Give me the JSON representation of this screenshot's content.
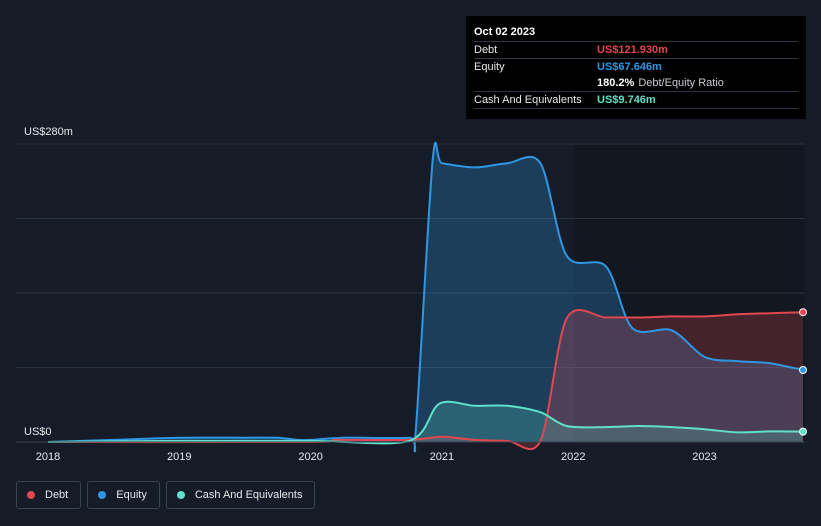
{
  "tooltip": {
    "date": "Oct 02 2023",
    "debt_label": "Debt",
    "debt_value": "US$121.930m",
    "equity_label": "Equity",
    "equity_value": "US$67.646m",
    "ratio_value": "180.2%",
    "ratio_label": "Debt/Equity Ratio",
    "cash_label": "Cash And Equivalents",
    "cash_value": "US$9.746m"
  },
  "legend": [
    {
      "label": "Debt",
      "color": "#e0474e"
    },
    {
      "label": "Equity",
      "color": "#2f96e3"
    },
    {
      "label": "Cash And Equivalents",
      "color": "#5fe0c9"
    }
  ],
  "chart_data": {
    "type": "area",
    "y_top_label": "US$280m",
    "y_bottom_label": "US$0",
    "ylim": [
      0,
      280
    ],
    "xlim": [
      2018.0,
      2023.75
    ],
    "x_tick_labels": [
      "2018",
      "2019",
      "2020",
      "2021",
      "2022",
      "2023"
    ],
    "series": [
      {
        "name": "Debt",
        "color": "#e0474e",
        "points": [
          [
            2018.0,
            0
          ],
          [
            2020.0,
            0
          ],
          [
            2020.2,
            2
          ],
          [
            2020.75,
            2
          ],
          [
            2021.0,
            5
          ],
          [
            2021.25,
            2
          ],
          [
            2021.5,
            1
          ],
          [
            2021.75,
            1
          ],
          [
            2021.95,
            116
          ],
          [
            2022.25,
            117
          ],
          [
            2022.5,
            117
          ],
          [
            2022.75,
            118
          ],
          [
            2023.0,
            118
          ],
          [
            2023.25,
            120
          ],
          [
            2023.5,
            121
          ],
          [
            2023.75,
            121.93
          ]
        ]
      },
      {
        "name": "Equity",
        "color": "#2f96e3",
        "points": [
          [
            2018.0,
            0
          ],
          [
            2018.5,
            2
          ],
          [
            2019.0,
            4
          ],
          [
            2019.5,
            4
          ],
          [
            2019.75,
            4
          ],
          [
            2019.9,
            2
          ],
          [
            2020.0,
            2
          ],
          [
            2020.25,
            4
          ],
          [
            2020.75,
            4
          ],
          [
            2020.8,
            10
          ],
          [
            2020.93,
            265
          ],
          [
            2021.0,
            262
          ],
          [
            2021.25,
            258
          ],
          [
            2021.5,
            262
          ],
          [
            2021.75,
            262
          ],
          [
            2021.95,
            175
          ],
          [
            2022.25,
            165
          ],
          [
            2022.45,
            107
          ],
          [
            2022.75,
            105
          ],
          [
            2023.0,
            80
          ],
          [
            2023.25,
            76
          ],
          [
            2023.5,
            74
          ],
          [
            2023.75,
            67.646
          ]
        ]
      },
      {
        "name": "Cash And Equivalents",
        "color": "#5fe0c9",
        "points": [
          [
            2018.0,
            0
          ],
          [
            2019.0,
            1
          ],
          [
            2020.0,
            1
          ],
          [
            2020.75,
            1
          ],
          [
            2020.98,
            36
          ],
          [
            2021.25,
            34
          ],
          [
            2021.5,
            34
          ],
          [
            2021.75,
            28
          ],
          [
            2021.95,
            15
          ],
          [
            2022.25,
            14
          ],
          [
            2022.5,
            15
          ],
          [
            2022.75,
            14
          ],
          [
            2023.0,
            12
          ],
          [
            2023.25,
            9
          ],
          [
            2023.5,
            10
          ],
          [
            2023.75,
            9.746
          ]
        ]
      }
    ]
  }
}
